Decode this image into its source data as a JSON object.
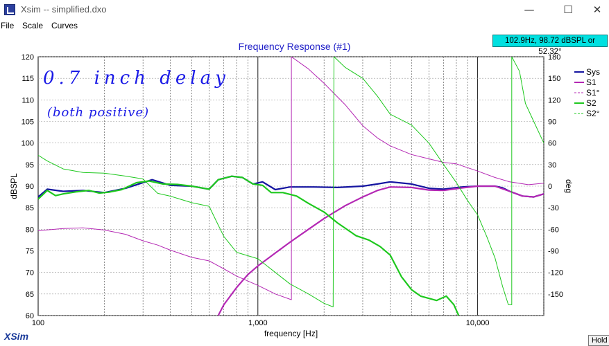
{
  "window": {
    "title": "Xsim -- simplified.dxo",
    "minimize": "—",
    "maximize": "☐",
    "close": "✕"
  },
  "menu": {
    "items": [
      "File",
      "Scale",
      "Curves"
    ]
  },
  "readout": "102.9Hz, 98.72 dBSPL or 52.32°",
  "annotation": {
    "line1": "0.7 inch delay",
    "line2": "(both positive)"
  },
  "logo": "XSim",
  "hold_label": "Hold",
  "colors": {
    "sys": "#1414a0",
    "s1": "#b428b4",
    "s2": "#1ec81e",
    "title": "#2020c8",
    "readout_bg": "#00e0e0",
    "annotation": "#1a1ae6"
  },
  "chart_data": {
    "type": "line",
    "title": "Frequency Response (#1)",
    "xlabel": "frequency [Hz]",
    "ylabel": "dBSPL",
    "y2label": "deg",
    "x_scale": "log",
    "xlim": [
      100,
      20000
    ],
    "ylim": [
      60,
      120
    ],
    "y2lim": [
      -180,
      180
    ],
    "x_ticks": [
      100,
      1000,
      10000
    ],
    "x_tick_labels": [
      "100",
      "1,000",
      "10,000"
    ],
    "y_ticks": [
      60,
      65,
      70,
      75,
      80,
      85,
      90,
      95,
      100,
      105,
      110,
      115,
      120
    ],
    "y2_ticks": [
      -150,
      -120,
      -90,
      -60,
      -30,
      0,
      30,
      60,
      90,
      120,
      150,
      180
    ],
    "grid": true,
    "legend_position": "top-right",
    "legend": [
      {
        "name": "Sys",
        "color": "#1414a0",
        "style": "solid"
      },
      {
        "name": "S1",
        "color": "#b428b4",
        "style": "solid"
      },
      {
        "name": "S1°",
        "color": "#b428b4",
        "style": "dashed"
      },
      {
        "name": "S2",
        "color": "#1ec81e",
        "style": "solid"
      },
      {
        "name": "S2°",
        "color": "#1ec81e",
        "style": "dashed"
      }
    ],
    "series": [
      {
        "name": "Sys",
        "axis": "left",
        "color": "#1414a0",
        "width": 2.2,
        "points": [
          [
            100,
            87.5
          ],
          [
            110,
            89.3
          ],
          [
            130,
            88.8
          ],
          [
            160,
            89
          ],
          [
            200,
            88.5
          ],
          [
            250,
            89.5
          ],
          [
            330,
            91.5
          ],
          [
            400,
            90.2
          ],
          [
            500,
            90
          ],
          [
            600,
            89.3
          ],
          [
            660,
            91.5
          ],
          [
            760,
            92.3
          ],
          [
            850,
            92
          ],
          [
            950,
            90.5
          ],
          [
            1050,
            91
          ],
          [
            1200,
            89.2
          ],
          [
            1400,
            89.8
          ],
          [
            1800,
            89.8
          ],
          [
            2300,
            89.7
          ],
          [
            3000,
            90
          ],
          [
            3500,
            90.5
          ],
          [
            4000,
            91
          ],
          [
            5000,
            90.5
          ],
          [
            6000,
            89.5
          ],
          [
            7000,
            89.3
          ],
          [
            8500,
            89.8
          ],
          [
            10000,
            90
          ],
          [
            12000,
            90
          ],
          [
            13000,
            89.6
          ],
          [
            14000,
            88.8
          ],
          [
            16000,
            87.7
          ],
          [
            18000,
            87.5
          ],
          [
            20000,
            88.2
          ]
        ]
      },
      {
        "name": "S1",
        "axis": "left",
        "color": "#b428b4",
        "width": 2.2,
        "points": [
          [
            660,
            60
          ],
          [
            700,
            62.5
          ],
          [
            800,
            66.5
          ],
          [
            900,
            69.5
          ],
          [
            1000,
            71.5
          ],
          [
            1200,
            74.5
          ],
          [
            1400,
            77
          ],
          [
            1700,
            80
          ],
          [
            2000,
            82.5
          ],
          [
            2500,
            85.5
          ],
          [
            3000,
            87.5
          ],
          [
            3500,
            89
          ],
          [
            4000,
            89.8
          ],
          [
            5000,
            89.7
          ],
          [
            6000,
            89.1
          ],
          [
            7000,
            89
          ],
          [
            8500,
            89.6
          ],
          [
            10000,
            90
          ],
          [
            12000,
            90
          ],
          [
            14000,
            88.8
          ],
          [
            16000,
            87.7
          ],
          [
            18000,
            87.5
          ],
          [
            20000,
            88.2
          ]
        ]
      },
      {
        "name": "S1°",
        "axis": "right",
        "color": "#b428b4",
        "width": 1,
        "points": [
          [
            100,
            -62
          ],
          [
            130,
            -59
          ],
          [
            160,
            -58
          ],
          [
            200,
            -61
          ],
          [
            250,
            -67
          ],
          [
            300,
            -76
          ],
          [
            350,
            -82
          ],
          [
            400,
            -89
          ],
          [
            500,
            -99
          ],
          [
            600,
            -104
          ],
          [
            700,
            -115
          ],
          [
            800,
            -125
          ],
          [
            1000,
            -138
          ],
          [
            1200,
            -150
          ],
          [
            1420,
            -158
          ],
          [
            1420,
            180
          ],
          [
            1700,
            163
          ],
          [
            2000,
            143
          ],
          [
            2500,
            113
          ],
          [
            3000,
            84
          ],
          [
            3500,
            67
          ],
          [
            4000,
            56
          ],
          [
            5000,
            44
          ],
          [
            6000,
            38
          ],
          [
            7000,
            33
          ],
          [
            8000,
            31
          ],
          [
            10000,
            21
          ],
          [
            12000,
            12
          ],
          [
            14000,
            6
          ],
          [
            17000,
            2
          ],
          [
            20000,
            4
          ]
        ]
      },
      {
        "name": "S2",
        "axis": "left",
        "color": "#1ec81e",
        "width": 2.2,
        "points": [
          [
            100,
            87
          ],
          [
            110,
            89
          ],
          [
            120,
            87.8
          ],
          [
            130,
            88.2
          ],
          [
            150,
            88.7
          ],
          [
            170,
            89
          ],
          [
            190,
            88.4
          ],
          [
            210,
            88.6
          ],
          [
            240,
            89.2
          ],
          [
            280,
            90.8
          ],
          [
            320,
            91.2
          ],
          [
            370,
            90.5
          ],
          [
            430,
            90.4
          ],
          [
            500,
            90
          ],
          [
            600,
            89.3
          ],
          [
            660,
            91.5
          ],
          [
            760,
            92.3
          ],
          [
            850,
            92
          ],
          [
            950,
            90.5
          ],
          [
            1050,
            90.2
          ],
          [
            1150,
            88.5
          ],
          [
            1300,
            88.5
          ],
          [
            1500,
            87.7
          ],
          [
            1700,
            86
          ],
          [
            2000,
            84
          ],
          [
            2300,
            81.5
          ],
          [
            2800,
            78.5
          ],
          [
            3200,
            77.5
          ],
          [
            3600,
            76
          ],
          [
            4000,
            74
          ],
          [
            4500,
            69
          ],
          [
            5000,
            66
          ],
          [
            5500,
            64.5
          ],
          [
            6500,
            63.5
          ],
          [
            7200,
            64.5
          ],
          [
            7800,
            62.5
          ],
          [
            8200,
            60
          ]
        ]
      },
      {
        "name": "S2°",
        "axis": "right",
        "color": "#1ec81e",
        "width": 1,
        "points": [
          [
            100,
            43
          ],
          [
            110,
            35
          ],
          [
            130,
            24
          ],
          [
            160,
            19
          ],
          [
            200,
            18
          ],
          [
            250,
            14
          ],
          [
            300,
            10
          ],
          [
            350,
            -10
          ],
          [
            400,
            -14
          ],
          [
            500,
            -23
          ],
          [
            600,
            -28
          ],
          [
            650,
            -50
          ],
          [
            700,
            -70
          ],
          [
            800,
            -92
          ],
          [
            1000,
            -101
          ],
          [
            1200,
            -120
          ],
          [
            1400,
            -136
          ],
          [
            1700,
            -150
          ],
          [
            2000,
            -163
          ],
          [
            2200,
            -168
          ],
          [
            2220,
            180
          ],
          [
            2500,
            165
          ],
          [
            3000,
            150
          ],
          [
            3500,
            125
          ],
          [
            4000,
            100
          ],
          [
            5000,
            85
          ],
          [
            6000,
            60
          ],
          [
            7000,
            30
          ],
          [
            8000,
            5
          ],
          [
            9000,
            -20
          ],
          [
            10000,
            -40
          ],
          [
            11000,
            -70
          ],
          [
            12000,
            -100
          ],
          [
            13000,
            -140
          ],
          [
            13800,
            -165
          ],
          [
            14300,
            -165
          ],
          [
            14300,
            180
          ],
          [
            15500,
            160
          ],
          [
            16500,
            115
          ],
          [
            18000,
            90
          ],
          [
            20000,
            60
          ]
        ]
      }
    ]
  }
}
